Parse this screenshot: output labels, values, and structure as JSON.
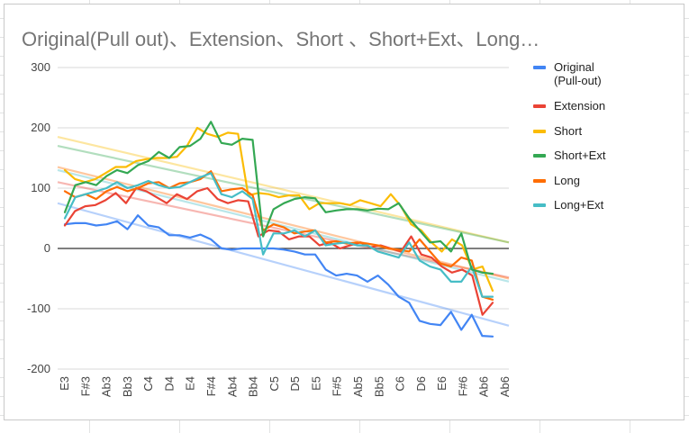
{
  "chart_data": {
    "type": "line",
    "title": "Original(Pull out)、Extension、Short 、Short+Ext、Long…",
    "xlabel": "",
    "ylabel": "",
    "ylim": [
      -200,
      300
    ],
    "y_ticks": [
      "300",
      "200",
      "100",
      "0",
      "-100",
      "-200"
    ],
    "grid": true,
    "legend_position": "right",
    "x_ticks": [
      "E3",
      "F#3",
      "Ab3",
      "Bb3",
      "C4",
      "D4",
      "E4",
      "F#4",
      "Ab4",
      "Bb4",
      "C5",
      "D5",
      "E5",
      "F#5",
      "Ab5",
      "Bb5",
      "C6",
      "D6",
      "E6",
      "F#6",
      "Ab6",
      "Ab6"
    ],
    "series": [
      {
        "name": "Original\n(Pull-out)",
        "color": "#4285f4",
        "values": [
          40,
          42,
          42,
          38,
          40,
          45,
          32,
          55,
          38,
          35,
          22,
          22,
          18,
          23,
          15,
          0,
          -2,
          0,
          0,
          0,
          0,
          -2,
          -5,
          -10,
          -10,
          -35,
          -45,
          -42,
          -45,
          -55,
          -45,
          -60,
          -80,
          -90,
          -120,
          -125,
          -127,
          -105,
          -135,
          -110,
          -145,
          -146
        ],
        "trend": [
          75,
          -128
        ]
      },
      {
        "name": "Extension",
        "color": "#ea4335",
        "values": [
          38,
          62,
          70,
          72,
          80,
          92,
          75,
          100,
          95,
          85,
          75,
          90,
          82,
          95,
          100,
          82,
          75,
          80,
          78,
          20,
          30,
          28,
          15,
          20,
          20,
          5,
          10,
          0,
          5,
          10,
          2,
          5,
          0,
          -5,
          20,
          -10,
          -15,
          -30,
          -40,
          -35,
          -45,
          -110,
          -90
        ],
        "trend": [
          110,
          -48
        ]
      },
      {
        "name": "Short",
        "color": "#fbbc04",
        "values": [
          130,
          115,
          110,
          115,
          125,
          135,
          135,
          145,
          148,
          150,
          150,
          152,
          170,
          200,
          190,
          185,
          192,
          190,
          88,
          92,
          90,
          85,
          88,
          88,
          65,
          75,
          75,
          75,
          72,
          80,
          75,
          70,
          90,
          70,
          40,
          30,
          10,
          -5,
          15,
          5,
          -35,
          -30,
          -70
        ],
        "trend": [
          185,
          10
        ]
      },
      {
        "name": "Short+Ext",
        "color": "#34a853",
        "values": [
          60,
          105,
          110,
          105,
          120,
          130,
          125,
          138,
          145,
          160,
          150,
          168,
          170,
          182,
          210,
          175,
          172,
          182,
          180,
          20,
          65,
          75,
          82,
          85,
          83,
          60,
          63,
          65,
          65,
          63,
          66,
          65,
          75,
          50,
          30,
          10,
          12,
          -5,
          25,
          -35,
          -40,
          -42
        ],
        "trend": [
          170,
          10
        ]
      },
      {
        "name": "Long",
        "color": "#ff6d01",
        "values": [
          95,
          85,
          90,
          82,
          95,
          102,
          95,
          100,
          108,
          110,
          100,
          108,
          110,
          115,
          128,
          95,
          98,
          100,
          88,
          30,
          40,
          35,
          25,
          28,
          30,
          10,
          12,
          8,
          10,
          8,
          5,
          0,
          -2,
          -5,
          15,
          -5,
          -25,
          -30,
          -15,
          -20,
          -80,
          -85
        ],
        "trend": [
          135,
          -50
        ]
      },
      {
        "name": "Long+Ext",
        "color": "#46bdc6",
        "values": [
          50,
          85,
          90,
          95,
          100,
          110,
          100,
          105,
          112,
          105,
          100,
          102,
          110,
          118,
          125,
          90,
          85,
          95,
          82,
          -10,
          25,
          25,
          30,
          20,
          30,
          5,
          8,
          10,
          5,
          5,
          -5,
          -10,
          -15,
          10,
          -20,
          -30,
          -35,
          -55,
          -55,
          -30,
          -80,
          -80
        ],
        "trend": [
          130,
          -55
        ]
      }
    ]
  }
}
